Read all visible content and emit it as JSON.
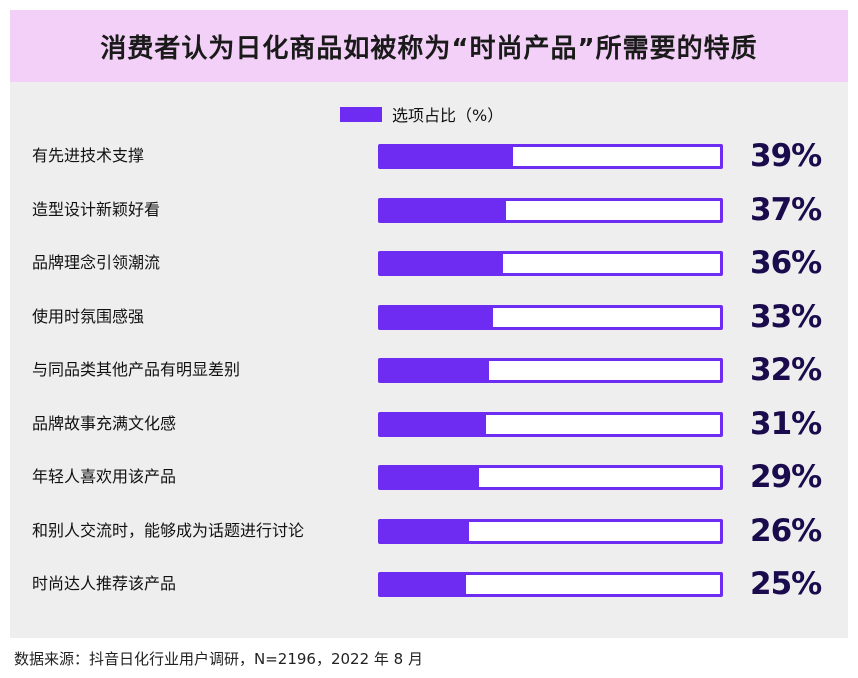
{
  "title": "消费者认为日化商品如被称为“时尚产品”所需要的特质",
  "source": "数据来源：抖音日化行业用户调研，N=2196，2022 年 8 月",
  "colors": {
    "accent": "#6e2bf2",
    "title_bg": "#f3d0f7",
    "panel_bg": "#eeeeee",
    "value_text": "#1a0b4d"
  },
  "chart_data": {
    "type": "bar",
    "orientation": "horizontal",
    "legend": "选项占比（%）",
    "legend_placement": "top-center",
    "xlim": [
      0,
      100
    ],
    "unit": "%",
    "grid": false,
    "categories": [
      "有先进技术支撑",
      "造型设计新颖好看",
      "品牌理念引领潮流",
      "使用时氛围感强",
      "与同品类其他产品有明显差别",
      "品牌故事充满文化感",
      "年轻人喜欢用该产品",
      "和别人交流时，能够成为话题进行讨论",
      "时尚达人推荐该产品"
    ],
    "values": [
      39,
      37,
      36,
      33,
      32,
      31,
      29,
      26,
      25
    ],
    "value_labels": [
      "39%",
      "37%",
      "36%",
      "33%",
      "32%",
      "31%",
      "29%",
      "26%",
      "25%"
    ]
  }
}
